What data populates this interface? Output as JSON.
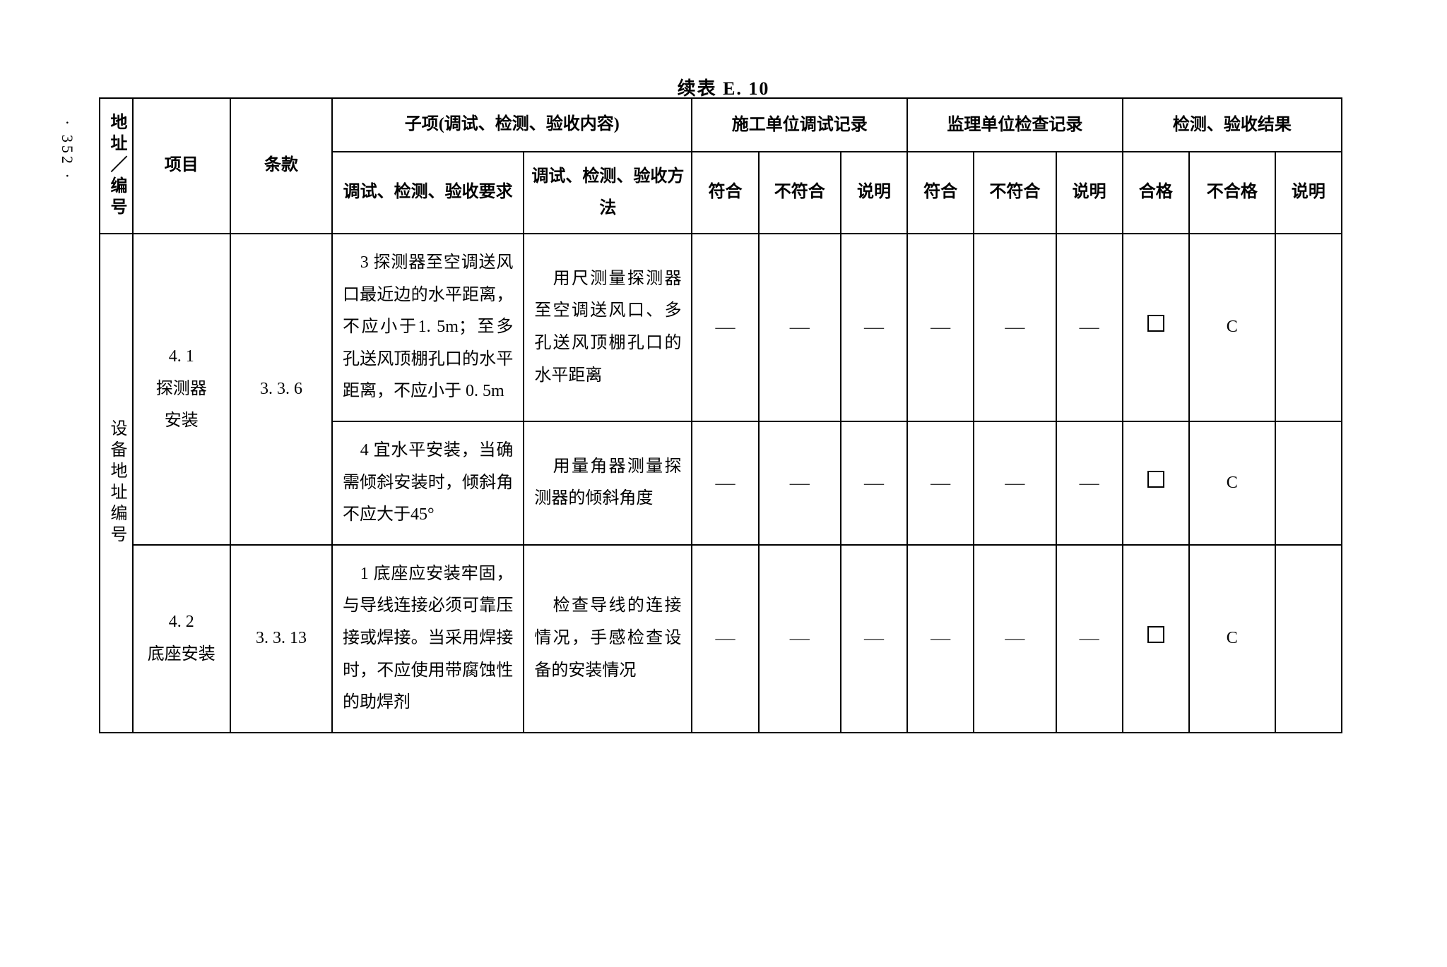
{
  "page_number": "· 352 ·",
  "title": "续表 E. 10",
  "table": {
    "header": {
      "addr": "地址／编号",
      "project": "项目",
      "clause": "条款",
      "subitem_span": "子项(调试、检测、验收内容)",
      "sub_req": "调试、检测、验收要求",
      "sub_method": "调试、检测、验收方法",
      "group_construction": "施工单位调试记录",
      "group_supervision": "监理单位检查记录",
      "group_result": "检测、验收结果",
      "conform": "符合",
      "nonconform": "不符合",
      "note": "说明",
      "pass": "合格",
      "fail": "不合格"
    },
    "body": {
      "addr_label": "设备地址编号",
      "rows": [
        {
          "project": "4. 1\n探测器\n安装",
          "clause": "3. 3. 6",
          "req": "　3 探测器至空调送风口最近边的水平距离，不应小于1. 5m；至多孔送风顶棚孔口的水平距离，不应小于 0. 5m",
          "method": "　用尺测量探测器至空调送风口、多孔送风顶棚孔口的水平距离",
          "s_conform": "—",
          "s_nonconform": "—",
          "s_note": "—",
          "j_conform": "—",
          "j_nonconform": "—",
          "j_note": "—",
          "r_pass_box": true,
          "r_fail": "C",
          "r_note": ""
        },
        {
          "req": "　4 宜水平安装，当确需倾斜安装时，倾斜角不应大于45°",
          "method": "　用量角器测量探测器的倾斜角度",
          "s_conform": "—",
          "s_nonconform": "—",
          "s_note": "—",
          "j_conform": "—",
          "j_nonconform": "—",
          "j_note": "—",
          "r_pass_box": true,
          "r_fail": "C",
          "r_note": ""
        },
        {
          "project": "4. 2\n底座安装",
          "clause": "3. 3. 13",
          "req": "　1 底座应安装牢固，与导线连接必须可靠压接或焊接。当采用焊接时，不应使用带腐蚀性的助焊剂",
          "method": "　检查导线的连接情况，手感检查设备的安装情况",
          "s_conform": "—",
          "s_nonconform": "—",
          "s_note": "—",
          "j_conform": "—",
          "j_nonconform": "—",
          "j_note": "—",
          "r_pass_box": true,
          "r_fail": "C",
          "r_note": ""
        }
      ]
    }
  }
}
